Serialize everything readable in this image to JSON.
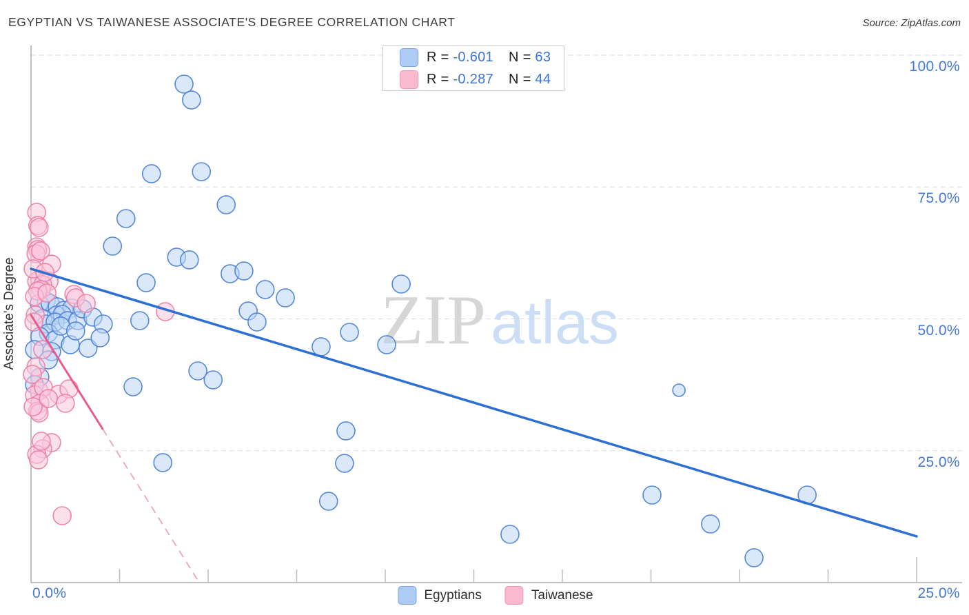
{
  "header": {
    "title": "EGYPTIAN VS TAIWANESE ASSOCIATE'S DEGREE CORRELATION CHART",
    "source": "Source: ZipAtlas.com"
  },
  "legend_box": {
    "rows": [
      {
        "r_label": "R =",
        "r_value": "-0.601",
        "n_label": "N =",
        "n_value": "63"
      },
      {
        "r_label": "R =",
        "r_value": "-0.287",
        "n_label": "N =",
        "n_value": "44"
      }
    ]
  },
  "watermark": {
    "zip": "ZIP",
    "atlas": "atlas"
  },
  "y_axis": {
    "label": "Associate's Degree",
    "ticks": [
      {
        "label": "100.0%",
        "pct": 100
      },
      {
        "label": "75.0%",
        "pct": 75
      },
      {
        "label": "50.0%",
        "pct": 50
      },
      {
        "label": "25.0%",
        "pct": 25
      }
    ]
  },
  "x_axis": {
    "left_label": "0.0%",
    "right_label": "25.0%",
    "tick_pcts": [
      2.5,
      5,
      7.5,
      10,
      12.5,
      15,
      17.5,
      20,
      22.5,
      25
    ]
  },
  "bottom_legend": [
    {
      "label": "Egyptians"
    },
    {
      "label": "Taiwanese"
    }
  ],
  "chart_data": {
    "type": "scatter",
    "title": "EGYPTIAN VS TAIWANESE ASSOCIATE'S DEGREE CORRELATION CHART",
    "xlabel_range": [
      0,
      25
    ],
    "ylabel": "Associate's Degree",
    "xlim": [
      0,
      26.3
    ],
    "ylim": [
      0,
      101.8
    ],
    "grid": "horizontal-dashed",
    "series": [
      {
        "name": "Egyptians",
        "R": -0.601,
        "N": 63,
        "fill": "#bcd5f6",
        "stroke": "#4e82d8",
        "points": [
          [
            4.32,
            94.51
          ],
          [
            4.53,
            91.5
          ],
          [
            3.4,
            77.52
          ],
          [
            4.81,
            77.91
          ],
          [
            5.51,
            71.63
          ],
          [
            2.68,
            69.02
          ],
          [
            2.3,
            63.79
          ],
          [
            4.11,
            61.7
          ],
          [
            4.47,
            61.18
          ],
          [
            5.62,
            58.56
          ],
          [
            6.01,
            59.08
          ],
          [
            6.61,
            55.56
          ],
          [
            7.18,
            53.99
          ],
          [
            6.13,
            51.5
          ],
          [
            6.38,
            49.41
          ],
          [
            10.45,
            56.6
          ],
          [
            8.99,
            47.45
          ],
          [
            8.19,
            44.71
          ],
          [
            10.04,
            45.1
          ],
          [
            4.71,
            40.13
          ],
          [
            5.14,
            38.43
          ],
          [
            8.89,
            28.76
          ],
          [
            8.85,
            22.61
          ],
          [
            8.4,
            15.42
          ],
          [
            18.29,
            36.47,
            9
          ],
          [
            17.53,
            16.6
          ],
          [
            19.18,
            11.11
          ],
          [
            20.41,
            4.71
          ],
          [
            13.52,
            9.15
          ],
          [
            21.91,
            16.6
          ],
          [
            3.72,
            22.75
          ],
          [
            2.88,
            37.12
          ],
          [
            0.43,
            53.33
          ],
          [
            0.23,
            52.94
          ],
          [
            0.54,
            52.94
          ],
          [
            0.74,
            52.29
          ],
          [
            0.93,
            51.63
          ],
          [
            1.15,
            52.03
          ],
          [
            0.72,
            50.72
          ],
          [
            0.88,
            50.85
          ],
          [
            0.33,
            50.07
          ],
          [
            0.43,
            49.02
          ],
          [
            0.68,
            49.41
          ],
          [
            1.03,
            49.67
          ],
          [
            1.32,
            49.67
          ],
          [
            0.49,
            47.32
          ],
          [
            0.25,
            46.67
          ],
          [
            0.68,
            46.01
          ],
          [
            0.1,
            44.18
          ],
          [
            0.58,
            43.79
          ],
          [
            1.11,
            45.1
          ],
          [
            0.49,
            42.22
          ],
          [
            0.25,
            38.95
          ],
          [
            0.1,
            37.52
          ],
          [
            3.07,
            49.67
          ],
          [
            3.25,
            56.86
          ],
          [
            1.46,
            51.9
          ],
          [
            1.75,
            50.33
          ],
          [
            2.04,
            49.02
          ],
          [
            1.61,
            44.44
          ],
          [
            1.95,
            46.41
          ],
          [
            0.84,
            48.63
          ],
          [
            1.26,
            47.71
          ]
        ]
      },
      {
        "name": "Taiwanese",
        "R": -0.287,
        "N": 44,
        "fill": "#fac8da",
        "stroke": "#ee7fa8",
        "points": [
          [
            0.16,
            70.2
          ],
          [
            0.19,
            67.71
          ],
          [
            0.23,
            67.32
          ],
          [
            0.16,
            63.66
          ],
          [
            0.19,
            63.14
          ],
          [
            0.14,
            62.35
          ],
          [
            0.27,
            62.88
          ],
          [
            0.58,
            60.39
          ],
          [
            0.25,
            57.52
          ],
          [
            0.16,
            57.12
          ],
          [
            0.51,
            57.12
          ],
          [
            0.33,
            56.47
          ],
          [
            0.29,
            55.56
          ],
          [
            0.19,
            55.29
          ],
          [
            1.21,
            54.64
          ],
          [
            1.26,
            53.99
          ],
          [
            0.12,
            50.72
          ],
          [
            0.08,
            49.41
          ],
          [
            0.33,
            44.18
          ],
          [
            0.14,
            40.92
          ],
          [
            0.04,
            39.48
          ],
          [
            0.23,
            36.34
          ],
          [
            0.1,
            35.56
          ],
          [
            0.35,
            36.99
          ],
          [
            0.78,
            35.69
          ],
          [
            1.07,
            36.73
          ],
          [
            0.25,
            33.99
          ],
          [
            0.19,
            32.55
          ],
          [
            0.23,
            32.16
          ],
          [
            0.58,
            26.54
          ],
          [
            0.33,
            25.36
          ],
          [
            0.16,
            24.31
          ],
          [
            0.21,
            23.27
          ],
          [
            0.88,
            12.68
          ],
          [
            3.79,
            51.37
          ],
          [
            1.56,
            52.94
          ],
          [
            0.06,
            59.48
          ],
          [
            0.39,
            58.82
          ],
          [
            0.1,
            54.25
          ],
          [
            0.45,
            54.9
          ],
          [
            0.06,
            33.33
          ],
          [
            0.49,
            34.9
          ],
          [
            0.97,
            33.99
          ],
          [
            0.29,
            26.8
          ]
        ]
      }
    ],
    "trend_lines": [
      {
        "series": "Egyptians",
        "style": "solid",
        "color": "#2e6fd3",
        "width": 3.5,
        "x0": 0,
        "y0": 59.48,
        "x1": 25.0,
        "y1": 8.76
      },
      {
        "series": "Taiwanese",
        "style": "solid",
        "color": "#e75c8e",
        "width": 3,
        "x0": 0,
        "y0": 50.72,
        "x1": 2.02,
        "y1": 29.15
      },
      {
        "series": "Taiwanese",
        "style": "dashed",
        "color": "#efa3bd",
        "width": 1.8,
        "x0": 2.02,
        "y0": 29.15,
        "x1": 4.75,
        "y1": 0
      }
    ]
  }
}
